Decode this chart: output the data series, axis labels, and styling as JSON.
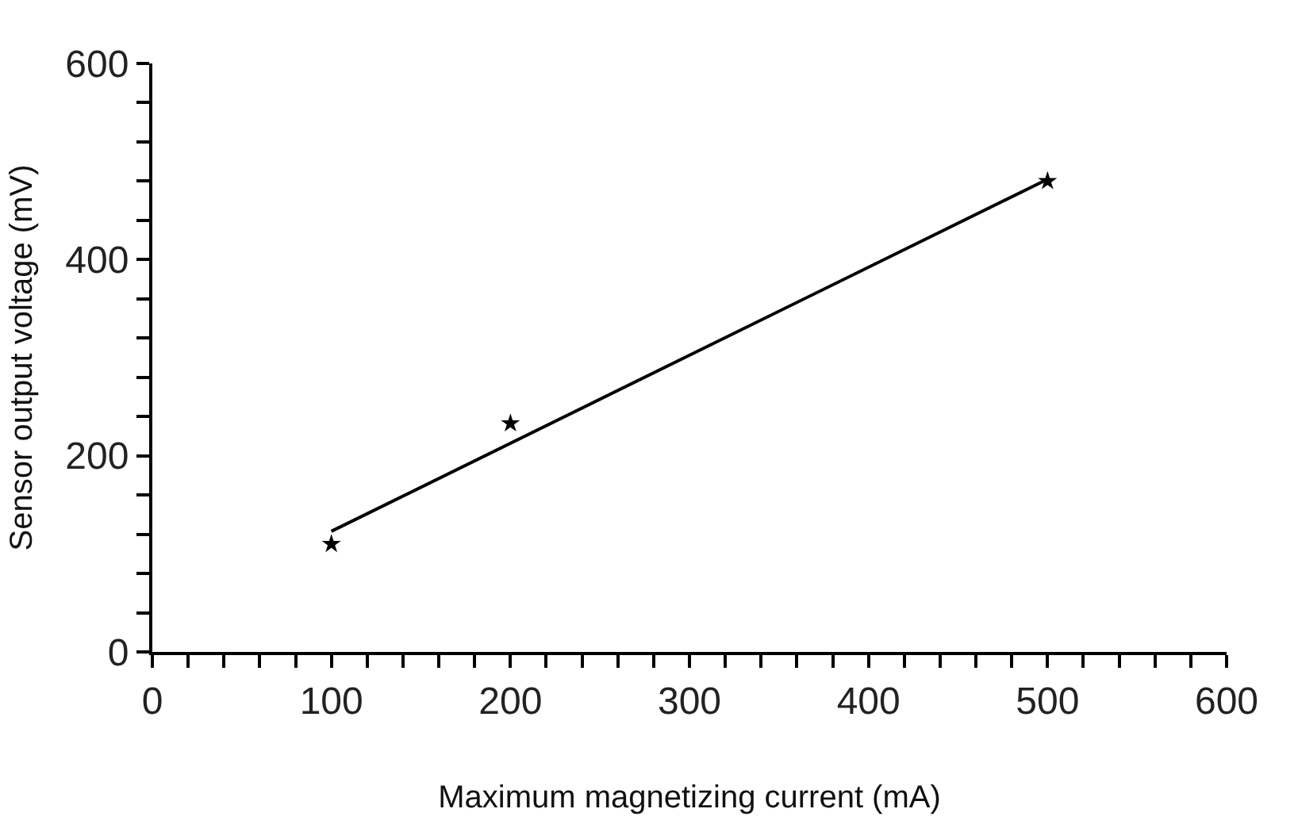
{
  "chart_data": {
    "type": "scatter",
    "xlabel": "Maximum magnetizing current (mA)",
    "ylabel": "Sensor output voltage (mV)",
    "x": [
      100,
      200,
      500
    ],
    "series": [
      {
        "color": "#000000",
        "values": [
          110,
          233,
          480
        ]
      },
      {
        "type": "line",
        "color": "#000000",
        "marker": "none",
        "x": [
          100,
          500
        ],
        "values": [
          123,
          482
        ]
      }
    ],
    "xlim": [
      0,
      600
    ],
    "ylim": [
      0,
      600
    ],
    "xticks": [
      0,
      {
        "value": 20,
        "label": null
      },
      {
        "value": 40,
        "label": null
      },
      {
        "value": 60,
        "label": null
      },
      {
        "value": 80,
        "label": null
      },
      100,
      {
        "value": 120,
        "label": null
      },
      {
        "value": 140,
        "label": null
      },
      {
        "value": 160,
        "label": null
      },
      {
        "value": 180,
        "label": null
      },
      200,
      {
        "value": 220,
        "label": null
      },
      {
        "value": 240,
        "label": null
      },
      {
        "value": 260,
        "label": null
      },
      {
        "value": 280,
        "label": null
      },
      300,
      {
        "value": 320,
        "label": null
      },
      {
        "value": 340,
        "label": null
      },
      {
        "value": 360,
        "label": null
      },
      {
        "value": 380,
        "label": null
      },
      400,
      {
        "value": 420,
        "label": null
      },
      {
        "value": 440,
        "label": null
      },
      {
        "value": 460,
        "label": null
      },
      {
        "value": 480,
        "label": null
      },
      500,
      {
        "value": 520,
        "label": null
      },
      {
        "value": 540,
        "label": null
      },
      {
        "value": 560,
        "label": null
      },
      {
        "value": 580,
        "label": null
      },
      600
    ],
    "yticks": [
      0,
      {
        "value": 40,
        "label": null
      },
      {
        "value": 80,
        "label": null
      },
      {
        "value": 120,
        "label": null
      },
      {
        "value": 160,
        "label": null
      },
      200,
      {
        "value": 240,
        "label": null
      },
      {
        "value": 280,
        "label": null
      },
      {
        "value": 320,
        "label": null
      },
      {
        "value": 360,
        "label": null
      },
      400,
      {
        "value": 440,
        "label": null
      },
      {
        "value": 480,
        "label": null
      },
      {
        "value": 520,
        "label": null
      },
      {
        "value": 560,
        "label": null
      },
      600
    ],
    "marker": "star"
  }
}
